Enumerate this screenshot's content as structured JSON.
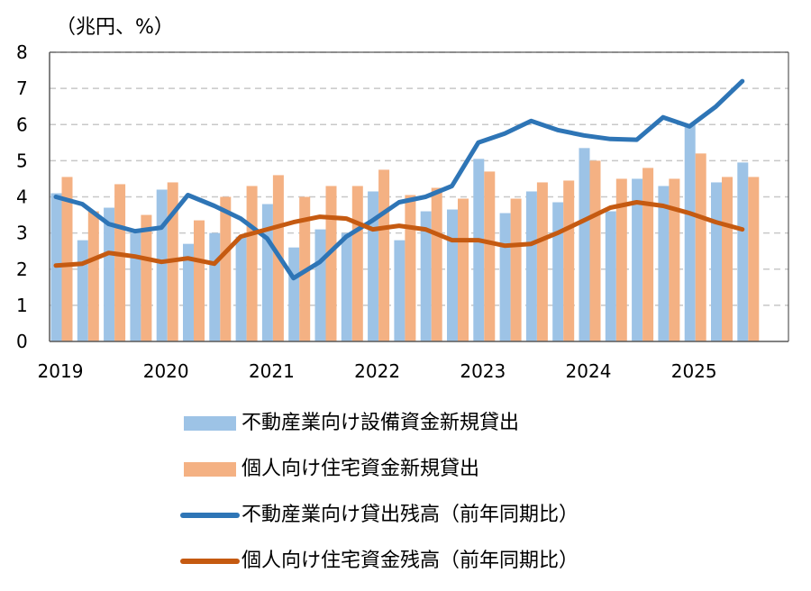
{
  "chart_data": {
    "type": "bar+line",
    "unit_label": "（兆円、%）",
    "ylim": [
      0,
      8
    ],
    "y_ticks": [
      "0",
      "1",
      "2",
      "3",
      "4",
      "5",
      "6",
      "7",
      "8"
    ],
    "grid": true,
    "x_ticks": [
      "2019",
      "2020",
      "2021",
      "2022",
      "2023",
      "2024",
      "2025"
    ],
    "quarters": [
      "2019Q1",
      "2019Q2",
      "2019Q3",
      "2019Q4",
      "2020Q1",
      "2020Q2",
      "2020Q3",
      "2020Q4",
      "2021Q1",
      "2021Q2",
      "2021Q3",
      "2021Q4",
      "2022Q1",
      "2022Q2",
      "2022Q3",
      "2022Q4",
      "2023Q1",
      "2023Q2",
      "2023Q3",
      "2023Q4",
      "2024Q1",
      "2024Q2",
      "2024Q3",
      "2024Q4",
      "2025Q1",
      "2025Q2",
      "2025Q3"
    ],
    "series": [
      {
        "name": "不動産業向け設備資金新規貸出",
        "kind": "bar",
        "color": "#9DC3E6",
        "values": [
          4.1,
          2.8,
          3.7,
          3.0,
          4.2,
          2.7,
          3.0,
          2.9,
          3.8,
          2.6,
          3.1,
          3.0,
          4.15,
          2.8,
          3.6,
          3.65,
          5.05,
          3.55,
          4.15,
          3.85,
          5.35,
          3.6,
          4.5,
          4.3,
          6.0,
          4.4,
          4.95
        ]
      },
      {
        "name": "個人向け住宅資金新規貸出",
        "kind": "bar",
        "color": "#F4B183",
        "values": [
          4.55,
          3.6,
          4.35,
          3.5,
          4.4,
          3.35,
          4.0,
          4.3,
          4.6,
          4.0,
          4.3,
          4.3,
          4.75,
          4.05,
          4.25,
          3.95,
          4.7,
          3.95,
          4.4,
          4.45,
          5.0,
          4.5,
          4.8,
          4.5,
          5.2,
          4.55,
          4.55
        ]
      },
      {
        "name": "不動産業向け貸出残高（前年同期比）",
        "kind": "line",
        "color": "#2E75B6",
        "values": [
          4.0,
          3.8,
          3.25,
          3.05,
          3.15,
          4.05,
          3.75,
          3.4,
          2.85,
          1.75,
          2.2,
          2.9,
          3.35,
          3.85,
          4.0,
          4.3,
          5.5,
          5.75,
          6.1,
          5.85,
          5.7,
          5.6,
          5.58,
          6.2,
          5.95,
          6.5,
          7.2
        ]
      },
      {
        "name": "個人向け住宅資金残高（前年同期比）",
        "kind": "line",
        "color": "#C55A11",
        "values": [
          2.1,
          2.15,
          2.45,
          2.35,
          2.2,
          2.3,
          2.15,
          2.9,
          3.1,
          3.3,
          3.45,
          3.4,
          3.1,
          3.2,
          3.1,
          2.8,
          2.8,
          2.65,
          2.7,
          3.0,
          3.35,
          3.7,
          3.85,
          3.75,
          3.55,
          3.3,
          3.1
        ]
      }
    ]
  }
}
